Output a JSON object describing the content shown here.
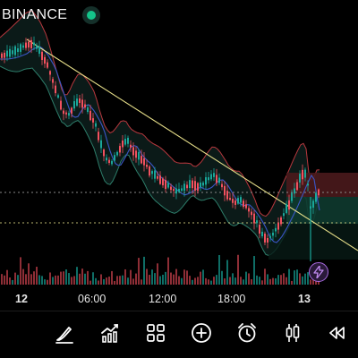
{
  "header": {
    "exchange": "BINANCE",
    "status_color": "#14c48a"
  },
  "time_axis": {
    "labels": [
      "12",
      "06:00",
      "12:00",
      "18:00",
      "13"
    ]
  },
  "toolbar": {
    "tools": [
      {
        "name": "draw-pen-icon"
      },
      {
        "name": "indicators-chart-icon"
      },
      {
        "name": "layout-grid-icon"
      },
      {
        "name": "add-circle-icon"
      },
      {
        "name": "alarm-clock-icon"
      },
      {
        "name": "candlestick-type-icon"
      },
      {
        "name": "replay-rewind-icon"
      }
    ]
  },
  "colors": {
    "up": "#1aa79a",
    "down": "#f2515f",
    "bollinger_upper": "#b8383e",
    "bollinger_lower": "#2d7d6a",
    "ma": "#3b56c6",
    "trendline": "#e8e08a",
    "price_line_dotted": "#888888",
    "avg_price_line": "#e8e08a",
    "long_position_profit": "#0e3a2f",
    "long_position_loss": "#4a1a1c",
    "bolt_accent": "#a86ae0"
  },
  "chart_data": {
    "type": "candlestick",
    "x_tick_labels": [
      "12",
      "06:00",
      "12:00",
      "18:00",
      "13"
    ],
    "trend": "downtrend from session open to early day 13, then rebound",
    "overlays": [
      "bollinger_bands",
      "moving_average",
      "descending_trendline",
      "long_position_box"
    ]
  }
}
